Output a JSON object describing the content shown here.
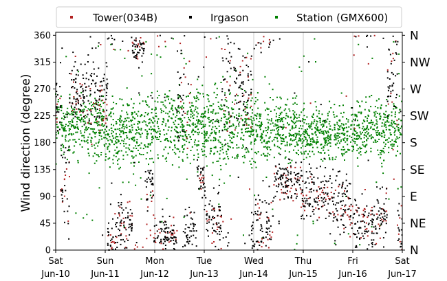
{
  "chart_data": {
    "type": "scatter",
    "title": "",
    "xlabel": "",
    "ylabel": "Wind direction (degree)",
    "ylim": [
      0,
      365
    ],
    "yticks": [
      0,
      45,
      90,
      135,
      180,
      225,
      270,
      315,
      360
    ],
    "x_range_days": [
      0,
      7
    ],
    "x_ticks": [
      {
        "day": "Sat",
        "date": "Jun-10"
      },
      {
        "day": "Sun",
        "date": "Jun-11"
      },
      {
        "day": "Mon",
        "date": "Jun-12"
      },
      {
        "day": "Tue",
        "date": "Jun-13"
      },
      {
        "day": "Wed",
        "date": "Jun-14"
      },
      {
        "day": "Thu",
        "date": "Jun-15"
      },
      {
        "day": "Fri",
        "date": "Jun-16"
      },
      {
        "day": "Sat",
        "date": "Jun-17"
      }
    ],
    "compass_labels": [
      {
        "deg": 360,
        "label": "N"
      },
      {
        "deg": 315,
        "label": "NW"
      },
      {
        "deg": 270,
        "label": "W"
      },
      {
        "deg": 225,
        "label": "SW"
      },
      {
        "deg": 180,
        "label": "S"
      },
      {
        "deg": 135,
        "label": "SE"
      },
      {
        "deg": 90,
        "label": "E"
      },
      {
        "deg": 45,
        "label": "NE"
      },
      {
        "deg": 0,
        "label": "N"
      }
    ],
    "grid_x": true,
    "legend_position": "top",
    "series": [
      {
        "name": "Tower(034B)",
        "color": "#b22222",
        "segments": [
          {
            "t0": 0.0,
            "t1": 0.1,
            "c": 230,
            "s": 25
          },
          {
            "t0": 0.1,
            "t1": 0.28,
            "c": 110,
            "s": 50
          },
          {
            "t0": 0.28,
            "t1": 0.55,
            "c": 265,
            "s": 25
          },
          {
            "t0": 0.55,
            "t1": 1.05,
            "c": 235,
            "s": 20
          },
          {
            "t0": 1.05,
            "t1": 1.25,
            "c": 15,
            "s": 15
          },
          {
            "t0": 1.25,
            "t1": 1.55,
            "c": 40,
            "s": 25
          },
          {
            "t0": 1.55,
            "t1": 1.8,
            "c": 345,
            "s": 15
          },
          {
            "t0": 1.8,
            "t1": 1.98,
            "c": 45,
            "s": 30
          },
          {
            "t0": 1.98,
            "t1": 2.45,
            "c": 25,
            "s": 15
          },
          {
            "t0": 2.5,
            "t1": 2.75,
            "c": 270,
            "s": 60
          },
          {
            "t0": 2.85,
            "t1": 3.0,
            "c": 115,
            "s": 15
          },
          {
            "t0": 3.0,
            "t1": 3.35,
            "c": 45,
            "s": 25
          },
          {
            "t0": 3.35,
            "t1": 3.55,
            "c": 280,
            "s": 60
          },
          {
            "t0": 3.6,
            "t1": 3.95,
            "c": 260,
            "s": 35
          },
          {
            "t0": 4.0,
            "t1": 4.4,
            "c": 35,
            "s": 25
          },
          {
            "t0": 4.4,
            "t1": 4.95,
            "c": 115,
            "s": 15
          },
          {
            "t0": 4.95,
            "t1": 5.6,
            "c": 85,
            "s": 20
          },
          {
            "t0": 5.6,
            "t1": 6.0,
            "c": 75,
            "s": 20
          },
          {
            "t0": 6.0,
            "t1": 6.5,
            "c": 45,
            "s": 25
          },
          {
            "t0": 6.5,
            "t1": 6.7,
            "c": 60,
            "s": 25
          },
          {
            "t0": 6.7,
            "t1": 6.9,
            "c": 270,
            "s": 50
          },
          {
            "t0": 6.9,
            "t1": 7.0,
            "c": 30,
            "s": 25
          }
        ],
        "samples": 420
      },
      {
        "name": "Irgason",
        "color": "#000000",
        "segments": [
          {
            "t0": 0.0,
            "t1": 0.1,
            "c": 245,
            "s": 30
          },
          {
            "t0": 0.1,
            "t1": 0.28,
            "c": 115,
            "s": 60
          },
          {
            "t0": 0.28,
            "t1": 0.55,
            "c": 275,
            "s": 30
          },
          {
            "t0": 0.55,
            "t1": 1.05,
            "c": 265,
            "s": 30
          },
          {
            "t0": 1.05,
            "t1": 1.25,
            "c": 20,
            "s": 20
          },
          {
            "t0": 1.25,
            "t1": 1.55,
            "c": 40,
            "s": 25
          },
          {
            "t0": 1.55,
            "t1": 1.8,
            "c": 340,
            "s": 15
          },
          {
            "t0": 1.8,
            "t1": 1.98,
            "c": 115,
            "s": 20
          },
          {
            "t0": 1.98,
            "t1": 2.45,
            "c": 25,
            "s": 15
          },
          {
            "t0": 2.45,
            "t1": 2.6,
            "c": 285,
            "s": 60
          },
          {
            "t0": 2.6,
            "t1": 2.85,
            "c": 30,
            "s": 15
          },
          {
            "t0": 2.85,
            "t1": 3.0,
            "c": 120,
            "s": 15
          },
          {
            "t0": 3.0,
            "t1": 3.35,
            "c": 50,
            "s": 25
          },
          {
            "t0": 3.35,
            "t1": 3.55,
            "c": 285,
            "s": 60
          },
          {
            "t0": 3.6,
            "t1": 3.95,
            "c": 270,
            "s": 30
          },
          {
            "t0": 3.95,
            "t1": 4.4,
            "c": 35,
            "s": 30
          },
          {
            "t0": 4.4,
            "t1": 4.95,
            "c": 120,
            "s": 15
          },
          {
            "t0": 4.95,
            "t1": 5.6,
            "c": 95,
            "s": 25
          },
          {
            "t0": 5.6,
            "t1": 6.0,
            "c": 80,
            "s": 25
          },
          {
            "t0": 6.0,
            "t1": 6.5,
            "c": 40,
            "s": 25
          },
          {
            "t0": 6.5,
            "t1": 6.7,
            "c": 60,
            "s": 25
          },
          {
            "t0": 6.7,
            "t1": 6.9,
            "c": 290,
            "s": 45
          },
          {
            "t0": 6.9,
            "t1": 7.0,
            "c": 35,
            "s": 30
          }
        ],
        "samples": 1200
      },
      {
        "name": "Station (GMX600)",
        "color": "#008000",
        "segments": [
          {
            "t0": 0.0,
            "t1": 1.0,
            "c": 210,
            "s": 25
          },
          {
            "t0": 1.0,
            "t1": 2.0,
            "c": 200,
            "s": 30
          },
          {
            "t0": 2.0,
            "t1": 3.0,
            "c": 210,
            "s": 30
          },
          {
            "t0": 3.0,
            "t1": 4.0,
            "c": 205,
            "s": 35
          },
          {
            "t0": 4.0,
            "t1": 5.0,
            "c": 200,
            "s": 25
          },
          {
            "t0": 5.0,
            "t1": 6.0,
            "c": 195,
            "s": 20
          },
          {
            "t0": 6.0,
            "t1": 7.0,
            "c": 205,
            "s": 25
          }
        ],
        "samples": 2300
      }
    ]
  }
}
